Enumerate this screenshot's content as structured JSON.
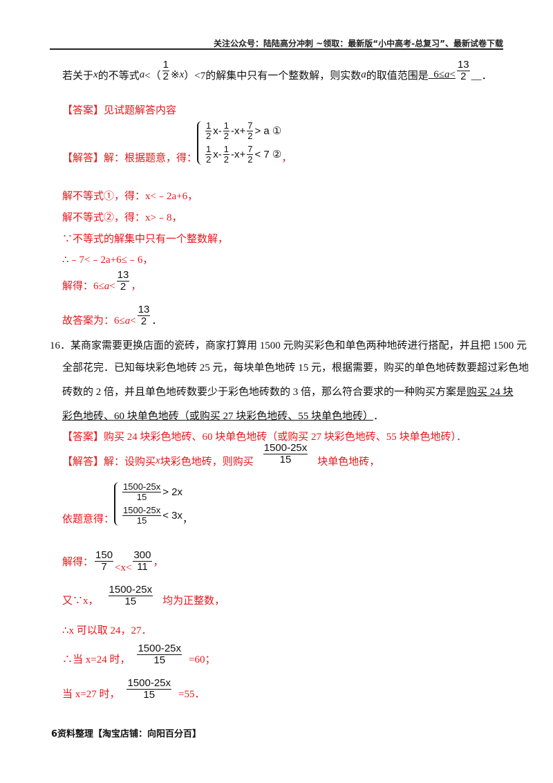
{
  "header": "关注公众号：陆陆高分冲刺 ~领取：最新版“小中高考-总复习”、最新试卷下载",
  "q15": {
    "p1": "若关于",
    "x": "x",
    "p2": "的不等式",
    "a": "a",
    "p3": "<（",
    "f_n": "1",
    "f_d": "2",
    "p4": "※",
    "p5": "）<7的解集中只有一个整数解，则实数",
    "p6": "的取值范围是",
    "ans_pre": "6≤",
    "ans_lt": "<",
    "af_n": "13",
    "af_d": "2",
    "end": "__．"
  },
  "q15_answer": "【答案】见试题解答内容",
  "q15_sol": {
    "label": "【解答】解：根据题意，得：",
    "eq1": {
      "rhs": "> a ①"
    },
    "eq2": {
      "rhs": "< 7 ②"
    },
    "comma": "，",
    "terms": {
      "h_n": "1",
      "h_d": "2",
      "x": "x-",
      "m": "-x+",
      "s_n": "7",
      "s_d": "2"
    },
    "l1": "解不等式①，得：x<﹣2a+6，",
    "l2": "解不等式②，得：x>﹣8，",
    "l3": "∵不等式的解集中只有一个整数解，",
    "l4": "∴﹣7<﹣2a+6≤﹣6，",
    "l5_pre": "解得：6≤",
    "l5_a": "a",
    "l5_lt": "<",
    "l5_end": "，",
    "l6_pre": "故答案为：6≤",
    "l6_end": "．"
  },
  "q16": {
    "l1": "16．某商家需要更换店面的瓷砖，商家打算用 1500 元购买彩色和单色两种地砖进行搭配，并且把 1500 元",
    "l2": "全部花完．已知每块彩色地砖 25 元，每块单色地砖 15 元，根据需要，购买的单色地砖数要超过彩色地",
    "l3": "砖数的 2 倍，并且单色地砖数要少于彩色地砖数的 3 倍，那么符合要求的一种购买方案是",
    "l3_ans": "  购买 24 块",
    "l4_ans": "彩色地砖、60 块单色地砖（或购买 27 块彩色地砖、55 块单色地砖）    ",
    "l4_end": "．"
  },
  "q16_answer": "【答案】购买 24 块彩色地砖、60 块单色地砖（或购买 27 块彩色地砖、55 块单色地砖）．",
  "q16_sol": {
    "l1_pre": "【解答】解：设购买",
    "x": "x",
    "l1_mid": "块彩色地砖，则购买",
    "frac_n": "1500-25x",
    "frac_d": "15",
    "l1_end": "块单色地砖，",
    "sys_label": "依题意得：",
    "eq1_rhs": "> 2x",
    "eq2_rhs": "< 3x",
    "comma": "，",
    "l3_pre": "解得：",
    "f1_n": "150",
    "f1_d": "7",
    "l3_mid": "<x<",
    "f2_n": "300",
    "f2_d": "11",
    "l3_end": "，",
    "l4_pre": "又∵x，",
    "l4_end": "均为正整数，",
    "l5": "∴x 可以取 24，27．",
    "l6_pre": "∴当 x=24 时，",
    "l6_end": "=60；",
    "l7_pre": "当 x=27 时，",
    "l7_end": "=55．"
  },
  "footer": "6资料整理【淘宝店铺：向阳百分百】"
}
